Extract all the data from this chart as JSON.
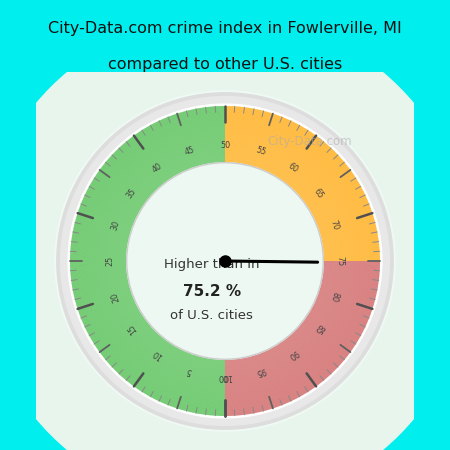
{
  "title_line1": "City-Data.com crime index in Fowlerville, MI",
  "title_line2": "compared to other U.S. cities",
  "title_bg": "#00EEEE",
  "gauge_bg_color": "#D8EEE0",
  "value": 75.2,
  "text_line1": "Higher than in",
  "text_bold": "75.2 %",
  "text_line3": "of U.S. cities",
  "green_color": "#44BB44",
  "orange_color": "#FFA500",
  "red_color": "#CC5555",
  "watermark": "City-Data.com",
  "outer_r": 0.82,
  "inner_r": 0.52,
  "border_r": 0.87
}
